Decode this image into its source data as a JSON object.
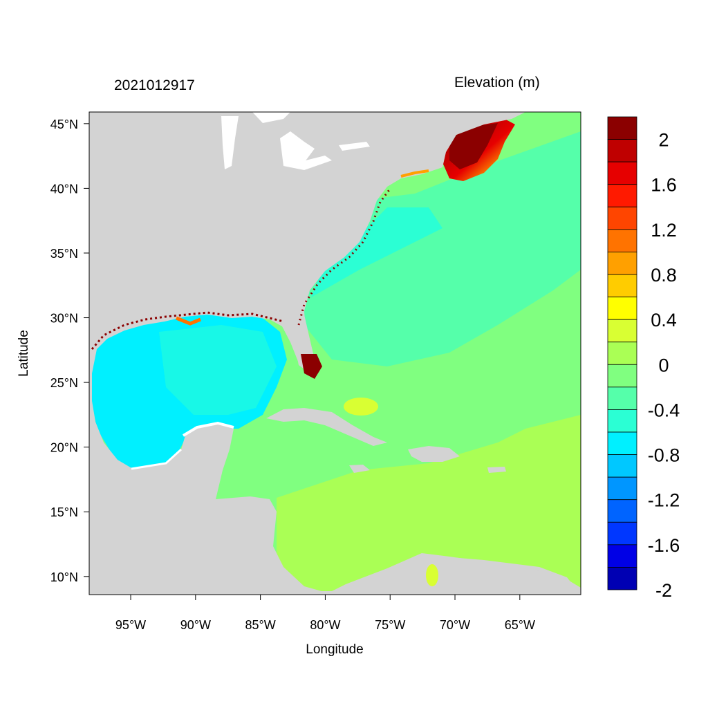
{
  "header": {
    "date": "2021012917",
    "variable": "Elevation (m)"
  },
  "map": {
    "xlabel": "Longitude",
    "ylabel": "Latitude",
    "lon_range": [
      -98.2,
      -60.3
    ],
    "lat_range": [
      8.6,
      45.9
    ],
    "lon_ticks": [
      {
        "value": -95,
        "label": "95°W"
      },
      {
        "value": -90,
        "label": "90°W"
      },
      {
        "value": -85,
        "label": "85°W"
      },
      {
        "value": -80,
        "label": "80°W"
      },
      {
        "value": -75,
        "label": "75°W"
      },
      {
        "value": -70,
        "label": "70°W"
      },
      {
        "value": -65,
        "label": "65°W"
      }
    ],
    "lat_ticks": [
      {
        "value": 45,
        "label": "45°N"
      },
      {
        "value": 40,
        "label": "40°N"
      },
      {
        "value": 35,
        "label": "35°N"
      },
      {
        "value": 30,
        "label": "30°N"
      },
      {
        "value": 25,
        "label": "25°N"
      },
      {
        "value": 20,
        "label": "20°N"
      },
      {
        "value": 15,
        "label": "15°N"
      },
      {
        "value": 10,
        "label": "10°N"
      }
    ],
    "land_color": "#d3d3d3"
  },
  "colorbar": {
    "colors_top_to_bottom": [
      "#8b0000",
      "#bf0000",
      "#e60000",
      "#ff1a00",
      "#ff4500",
      "#ff7300",
      "#ffa000",
      "#ffcc00",
      "#ffff00",
      "#d9ff33",
      "#aaff55",
      "#80ff80",
      "#55ffaa",
      "#2bffd4",
      "#00f0ff",
      "#00c8ff",
      "#0096ff",
      "#0064ff",
      "#0037ff",
      "#0000e6",
      "#0000b3"
    ],
    "labels": [
      {
        "text": "2",
        "level": 2.0
      },
      {
        "text": "1.6",
        "level": 1.6
      },
      {
        "text": "1.2",
        "level": 1.2
      },
      {
        "text": "0.8",
        "level": 0.8
      },
      {
        "text": "0.4",
        "level": 0.4
      },
      {
        "text": "0",
        "level": 0.0
      },
      {
        "text": "-0.4",
        "level": -0.4
      },
      {
        "text": "-0.8",
        "level": -0.8
      },
      {
        "text": "-1.2",
        "level": -1.2
      },
      {
        "text": "-1.6",
        "level": -1.6
      },
      {
        "text": "-2",
        "level": -2.0
      }
    ]
  }
}
